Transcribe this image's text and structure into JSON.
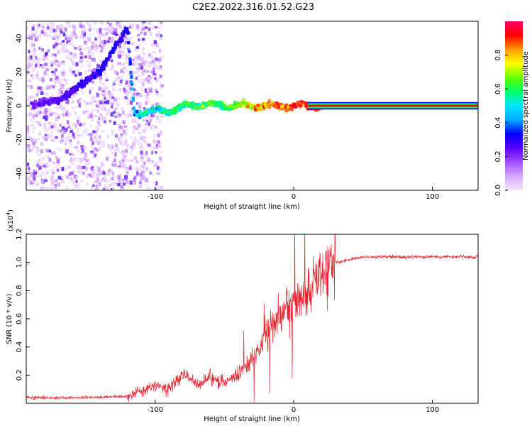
{
  "title": "C2E2.2022.316.01.52.G23",
  "chart_data": [
    {
      "type": "heatmap",
      "xlabel": "Height of straight line (km)",
      "ylabel": "Frequency (Hz)",
      "xlim": [
        -193,
        133
      ],
      "ylim": [
        -50,
        50
      ],
      "x_ticks": [
        -100,
        0,
        100
      ],
      "x_tick_labels": [
        "-100",
        "0",
        "100"
      ],
      "y_ticks": [
        -40,
        -20,
        0,
        20,
        40
      ],
      "y_tick_labels": [
        "-40",
        "-20",
        "0",
        "20",
        "40"
      ],
      "colorbar": {
        "label": "Normalized spectral amplitude",
        "range": [
          0,
          1
        ],
        "ticks": [
          0.0,
          0.2,
          0.4,
          0.6,
          0.8
        ],
        "tick_labels": [
          "0.0",
          "0.2",
          "0.4",
          "0.6",
          "0.8"
        ],
        "colormap": [
          "#f4e6ff",
          "#d6a8ff",
          "#a24dff",
          "#5a00ff",
          "#0000ff",
          "#00aaff",
          "#00e5ff",
          "#00ff66",
          "#66ff00",
          "#ffff00",
          "#ff9900",
          "#ff0000",
          "#ff0066"
        ]
      },
      "ridge": {
        "points": [
          {
            "x": -193,
            "y": 0,
            "amp": 0.2
          },
          {
            "x": -170,
            "y": 3,
            "amp": 0.25
          },
          {
            "x": -140,
            "y": 20,
            "amp": 0.3
          },
          {
            "x": -120,
            "y": 46,
            "amp": 0.3
          },
          {
            "x": -115,
            "y": -4,
            "amp": 0.45
          },
          {
            "x": -90,
            "y": -3,
            "amp": 0.55
          },
          {
            "x": -70,
            "y": 1,
            "amp": 0.6
          },
          {
            "x": -50,
            "y": 0,
            "amp": 0.6
          },
          {
            "x": -25,
            "y": 0,
            "amp": 0.8
          },
          {
            "x": 0,
            "y": 0,
            "amp": 0.9
          },
          {
            "x": 50,
            "y": 0,
            "amp": 1.0
          },
          {
            "x": 133,
            "y": 0,
            "amp": 1.0
          }
        ],
        "steady_band_from_x": 10
      }
    },
    {
      "type": "line",
      "xlabel": "Height of straight line (km)",
      "ylabel": "SNR (10 * v/v)",
      "y_multiplier_label": "(x10",
      "y_multiplier_exponent": "4",
      "y_multiplier_close": ")",
      "xlim": [
        -193,
        133
      ],
      "ylim": [
        0,
        1.2
      ],
      "x_ticks": [
        -100,
        0,
        100
      ],
      "x_tick_labels": [
        "-100",
        "0",
        "100"
      ],
      "y_ticks": [
        0.2,
        0.4,
        0.6,
        0.8,
        1.0,
        1.2
      ],
      "y_tick_labels": [
        "0.2",
        "0.4",
        "0.6",
        "0.8",
        "1.0",
        "1.2"
      ],
      "color": "#e8202a",
      "series": [
        {
          "x": [
            -193,
            -150,
            -120,
            -110,
            -100,
            -90,
            -80,
            -70,
            -60,
            -50,
            -40,
            -30,
            -25,
            -20,
            -15,
            -10,
            -5,
            0,
            5,
            10,
            15,
            20,
            25,
            30,
            40,
            50,
            60,
            80,
            100,
            120,
            133
          ],
          "y": [
            0.04,
            0.04,
            0.05,
            0.09,
            0.13,
            0.1,
            0.2,
            0.14,
            0.18,
            0.15,
            0.2,
            0.3,
            0.38,
            0.48,
            0.55,
            0.62,
            0.68,
            0.72,
            0.75,
            0.78,
            0.85,
            0.92,
            0.98,
            1.0,
            1.02,
            1.04,
            1.04,
            1.04,
            1.04,
            1.04,
            1.04
          ]
        }
      ]
    }
  ]
}
